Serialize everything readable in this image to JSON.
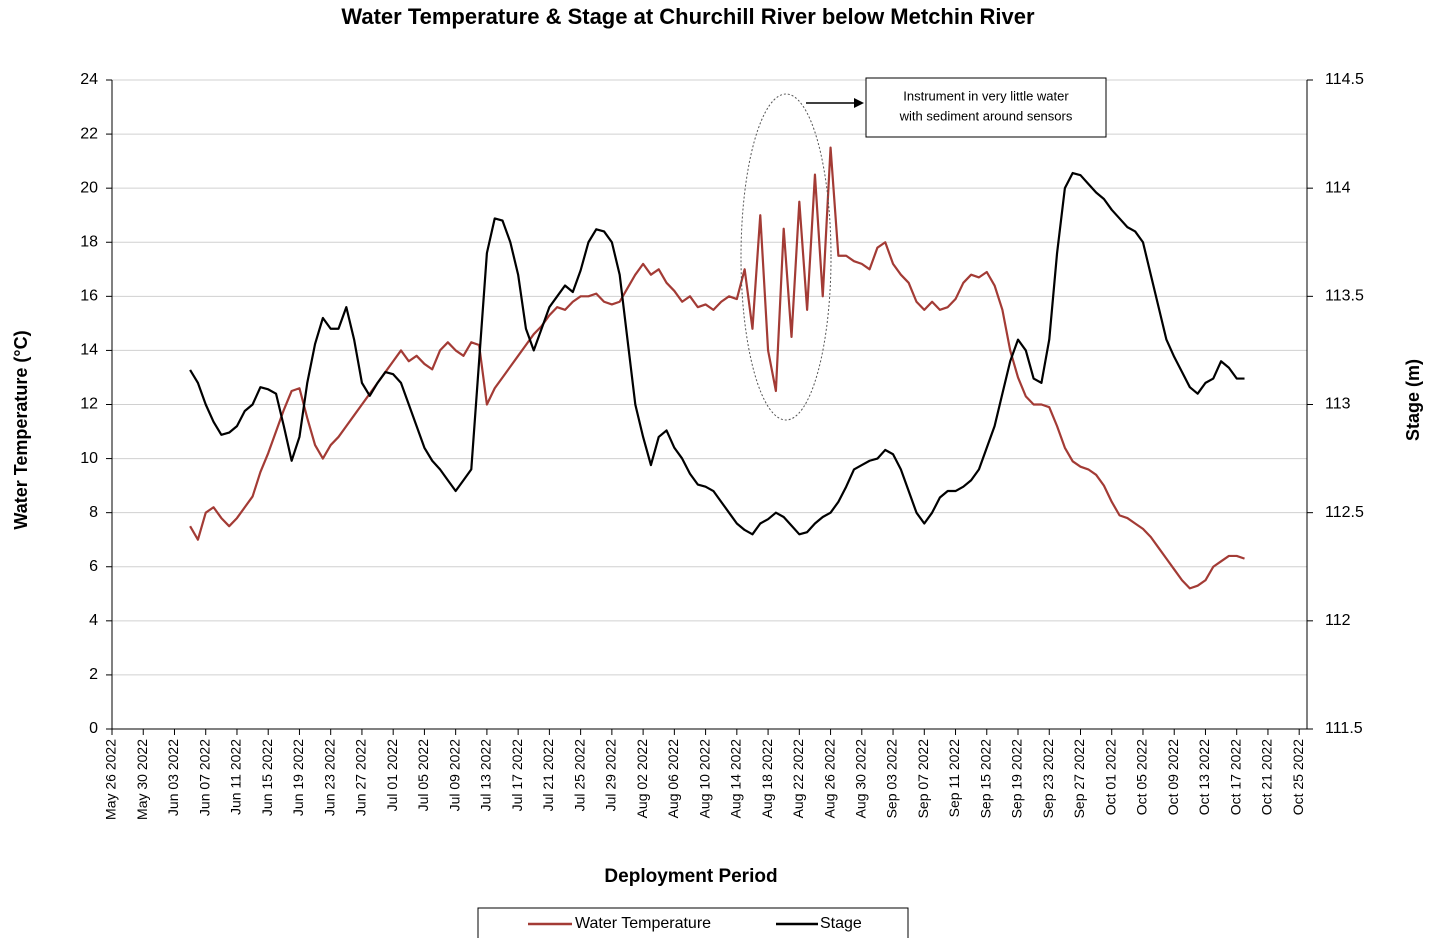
{
  "chart_data": {
    "type": "line",
    "title": "Water Temperature & Stage at Churchill River below Metchin River",
    "x_label": "Deployment Period",
    "y_label": "Water Temperature (°C)",
    "y2_label": "Stage (m)",
    "annotation": [
      "Instrument in very little water",
      "with sediment around sensors"
    ],
    "grid": true,
    "legend": "bottom",
    "xlim": [
      "2022-05-26",
      "2022-10-26"
    ],
    "xticks": [
      {
        "value": "2022-05-26",
        "label": "May 26 2022"
      },
      {
        "value": "2022-05-30",
        "label": "May 30 2022"
      },
      {
        "value": "2022-06-03",
        "label": "Jun 03 2022"
      },
      {
        "value": "2022-06-07",
        "label": "Jun 07 2022"
      },
      {
        "value": "2022-06-11",
        "label": "Jun 11 2022"
      },
      {
        "value": "2022-06-15",
        "label": "Jun 15 2022"
      },
      {
        "value": "2022-06-19",
        "label": "Jun 19 2022"
      },
      {
        "value": "2022-06-23",
        "label": "Jun 23 2022"
      },
      {
        "value": "2022-06-27",
        "label": "Jun 27 2022"
      },
      {
        "value": "2022-07-01",
        "label": "Jul 01 2022"
      },
      {
        "value": "2022-07-05",
        "label": "Jul 05 2022"
      },
      {
        "value": "2022-07-09",
        "label": "Jul 09 2022"
      },
      {
        "value": "2022-07-13",
        "label": "Jul 13 2022"
      },
      {
        "value": "2022-07-17",
        "label": "Jul 17 2022"
      },
      {
        "value": "2022-07-21",
        "label": "Jul 21 2022"
      },
      {
        "value": "2022-07-25",
        "label": "Jul 25 2022"
      },
      {
        "value": "2022-07-29",
        "label": "Jul 29 2022"
      },
      {
        "value": "2022-08-02",
        "label": "Aug 02 2022"
      },
      {
        "value": "2022-08-06",
        "label": "Aug 06 2022"
      },
      {
        "value": "2022-08-10",
        "label": "Aug 10 2022"
      },
      {
        "value": "2022-08-14",
        "label": "Aug 14 2022"
      },
      {
        "value": "2022-08-18",
        "label": "Aug 18 2022"
      },
      {
        "value": "2022-08-22",
        "label": "Aug 22 2022"
      },
      {
        "value": "2022-08-26",
        "label": "Aug 26 2022"
      },
      {
        "value": "2022-08-30",
        "label": "Aug 30 2022"
      },
      {
        "value": "2022-09-03",
        "label": "Sep 03 2022"
      },
      {
        "value": "2022-09-07",
        "label": "Sep 07 2022"
      },
      {
        "value": "2022-09-11",
        "label": "Sep 11 2022"
      },
      {
        "value": "2022-09-15",
        "label": "Sep 15 2022"
      },
      {
        "value": "2022-09-19",
        "label": "Sep 19 2022"
      },
      {
        "value": "2022-09-23",
        "label": "Sep 23 2022"
      },
      {
        "value": "2022-09-27",
        "label": "Sep 27 2022"
      },
      {
        "value": "2022-10-01",
        "label": "Oct 01 2022"
      },
      {
        "value": "2022-10-05",
        "label": "Oct 05 2022"
      },
      {
        "value": "2022-10-09",
        "label": "Oct 09 2022"
      },
      {
        "value": "2022-10-13",
        "label": "Oct 13 2022"
      },
      {
        "value": "2022-10-17",
        "label": "Oct 17 2022"
      },
      {
        "value": "2022-10-21",
        "label": "Oct 21 2022"
      },
      {
        "value": "2022-10-25",
        "label": "Oct 25 2022"
      }
    ],
    "ylim": [
      0,
      24
    ],
    "yticks": [
      0,
      2,
      4,
      6,
      8,
      10,
      12,
      14,
      16,
      18,
      20,
      22,
      24
    ],
    "y2lim": [
      111.5,
      114.5
    ],
    "y2ticks": [
      111.5,
      112,
      112.5,
      113,
      113.5,
      114,
      114.5
    ],
    "x": [
      "2022-06-05",
      "2022-06-06",
      "2022-06-07",
      "2022-06-08",
      "2022-06-09",
      "2022-06-10",
      "2022-06-11",
      "2022-06-12",
      "2022-06-13",
      "2022-06-14",
      "2022-06-15",
      "2022-06-16",
      "2022-06-17",
      "2022-06-18",
      "2022-06-19",
      "2022-06-20",
      "2022-06-21",
      "2022-06-22",
      "2022-06-23",
      "2022-06-24",
      "2022-06-25",
      "2022-06-26",
      "2022-06-27",
      "2022-06-28",
      "2022-06-29",
      "2022-06-30",
      "2022-07-01",
      "2022-07-02",
      "2022-07-03",
      "2022-07-04",
      "2022-07-05",
      "2022-07-06",
      "2022-07-07",
      "2022-07-08",
      "2022-07-09",
      "2022-07-10",
      "2022-07-11",
      "2022-07-12",
      "2022-07-13",
      "2022-07-14",
      "2022-07-15",
      "2022-07-16",
      "2022-07-17",
      "2022-07-18",
      "2022-07-19",
      "2022-07-20",
      "2022-07-21",
      "2022-07-22",
      "2022-07-23",
      "2022-07-24",
      "2022-07-25",
      "2022-07-26",
      "2022-07-27",
      "2022-07-28",
      "2022-07-29",
      "2022-07-30",
      "2022-07-31",
      "2022-08-01",
      "2022-08-02",
      "2022-08-03",
      "2022-08-04",
      "2022-08-05",
      "2022-08-06",
      "2022-08-07",
      "2022-08-08",
      "2022-08-09",
      "2022-08-10",
      "2022-08-11",
      "2022-08-12",
      "2022-08-13",
      "2022-08-14",
      "2022-08-15",
      "2022-08-16",
      "2022-08-17",
      "2022-08-18",
      "2022-08-19",
      "2022-08-20",
      "2022-08-21",
      "2022-08-22",
      "2022-08-23",
      "2022-08-24",
      "2022-08-25",
      "2022-08-26",
      "2022-08-27",
      "2022-08-28",
      "2022-08-29",
      "2022-08-30",
      "2022-08-31",
      "2022-09-01",
      "2022-09-02",
      "2022-09-03",
      "2022-09-04",
      "2022-09-05",
      "2022-09-06",
      "2022-09-07",
      "2022-09-08",
      "2022-09-09",
      "2022-09-10",
      "2022-09-11",
      "2022-09-12",
      "2022-09-13",
      "2022-09-14",
      "2022-09-15",
      "2022-09-16",
      "2022-09-17",
      "2022-09-18",
      "2022-09-19",
      "2022-09-20",
      "2022-09-21",
      "2022-09-22",
      "2022-09-23",
      "2022-09-24",
      "2022-09-25",
      "2022-09-26",
      "2022-09-27",
      "2022-09-28",
      "2022-09-29",
      "2022-09-30",
      "2022-10-01",
      "2022-10-02",
      "2022-10-03",
      "2022-10-04",
      "2022-10-05",
      "2022-10-06",
      "2022-10-07",
      "2022-10-08",
      "2022-10-09",
      "2022-10-10",
      "2022-10-11",
      "2022-10-12",
      "2022-10-13",
      "2022-10-14",
      "2022-10-15",
      "2022-10-16",
      "2022-10-17",
      "2022-10-18"
    ],
    "series": [
      {
        "name": "Water Temperature",
        "color": "#a33b35",
        "values": [
          7.5,
          7.0,
          8.0,
          8.2,
          7.8,
          7.5,
          7.8,
          8.2,
          8.6,
          9.5,
          10.2,
          11.0,
          11.8,
          12.5,
          12.6,
          11.5,
          10.5,
          10.0,
          10.5,
          10.8,
          11.2,
          11.6,
          12.0,
          12.4,
          12.8,
          13.2,
          13.6,
          14.0,
          13.6,
          13.8,
          13.5,
          13.3,
          14.0,
          14.3,
          14.0,
          13.8,
          14.3,
          14.2,
          12.0,
          12.6,
          13.0,
          13.4,
          13.8,
          14.2,
          14.6,
          14.9,
          15.3,
          15.6,
          15.5,
          15.8,
          16.0,
          16.0,
          16.1,
          15.8,
          15.7,
          15.8,
          16.3,
          16.8,
          17.2,
          16.8,
          17.0,
          16.5,
          16.2,
          15.8,
          16.0,
          15.6,
          15.7,
          15.5,
          15.8,
          16.0,
          15.9,
          17.0,
          14.8,
          19.0,
          14.0,
          12.5,
          18.5,
          14.5,
          19.5,
          15.5,
          20.5,
          16.0,
          21.5,
          17.5,
          17.5,
          17.3,
          17.2,
          17.0,
          17.8,
          18.0,
          17.2,
          16.8,
          16.5,
          15.8,
          15.5,
          15.8,
          15.5,
          15.6,
          15.9,
          16.5,
          16.8,
          16.7,
          16.9,
          16.4,
          15.5,
          14.0,
          13.0,
          12.3,
          12.0,
          12.0,
          11.9,
          11.2,
          10.4,
          9.9,
          9.7,
          9.6,
          9.4,
          9.0,
          8.4,
          7.9,
          7.8,
          7.6,
          7.4,
          7.1,
          6.7,
          6.3,
          5.9,
          5.5,
          5.2,
          5.3,
          5.5,
          6.0,
          6.2,
          6.4,
          6.4,
          6.3
        ]
      },
      {
        "name": "Stage",
        "color": "#000000",
        "axis": "y2",
        "values": [
          113.16,
          113.1,
          113.0,
          112.92,
          112.86,
          112.87,
          112.9,
          112.97,
          113.0,
          113.08,
          113.07,
          113.05,
          112.9,
          112.74,
          112.85,
          113.1,
          113.28,
          113.4,
          113.35,
          113.35,
          113.45,
          113.3,
          113.1,
          113.04,
          113.1,
          113.15,
          113.14,
          113.1,
          113.0,
          112.9,
          112.8,
          112.74,
          112.7,
          112.65,
          112.6,
          112.65,
          112.7,
          113.2,
          113.7,
          113.86,
          113.85,
          113.75,
          113.6,
          113.35,
          113.25,
          113.35,
          113.45,
          113.5,
          113.55,
          113.52,
          113.62,
          113.75,
          113.81,
          113.8,
          113.75,
          113.6,
          113.3,
          113.0,
          112.85,
          112.72,
          112.85,
          112.88,
          112.8,
          112.75,
          112.68,
          112.63,
          112.62,
          112.6,
          112.55,
          112.5,
          112.45,
          112.42,
          112.4,
          112.45,
          112.47,
          112.5,
          112.48,
          112.44,
          112.4,
          112.41,
          112.45,
          112.48,
          112.5,
          112.55,
          112.62,
          112.7,
          112.72,
          112.74,
          112.75,
          112.79,
          112.77,
          112.7,
          112.6,
          112.5,
          112.45,
          112.5,
          112.57,
          112.6,
          112.6,
          112.62,
          112.65,
          112.7,
          112.8,
          112.9,
          113.05,
          113.2,
          113.3,
          113.25,
          113.12,
          113.1,
          113.3,
          113.7,
          114.0,
          114.07,
          114.06,
          114.02,
          113.98,
          113.95,
          113.9,
          113.86,
          113.82,
          113.8,
          113.75,
          113.6,
          113.45,
          113.3,
          113.22,
          113.15,
          113.08,
          113.05,
          113.1,
          113.12,
          113.2,
          113.17,
          113.12,
          113.12
        ]
      }
    ]
  }
}
